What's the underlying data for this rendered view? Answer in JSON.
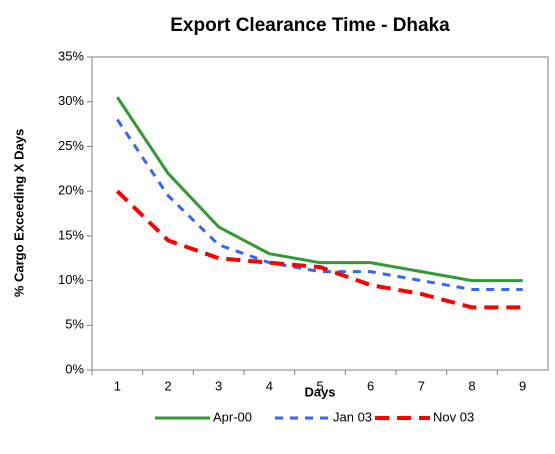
{
  "chart_data": {
    "type": "line",
    "title": "Export Clearance Time - Dhaka",
    "x_label": "Days",
    "y_label": "% Cargo Exceeding X Days",
    "categories": [
      "1",
      "2",
      "3",
      "4",
      "5",
      "6",
      "7",
      "8",
      "9"
    ],
    "series": [
      {
        "name": "Apr-00",
        "color": "#339933",
        "dash": "solid",
        "values": [
          30.5,
          22,
          16,
          13,
          12,
          12,
          11,
          10,
          10
        ]
      },
      {
        "name": "Jan 03",
        "color": "#3366ff",
        "dash": "dashed",
        "values": [
          28,
          19.5,
          14,
          12,
          11,
          11,
          10,
          9,
          9
        ]
      },
      {
        "name": "Nov 03",
        "color": "#ff0000",
        "dash": "dashed",
        "values": [
          20,
          14.5,
          12.5,
          12,
          11.5,
          9.5,
          8.5,
          7,
          7
        ]
      }
    ],
    "ylim": [
      0,
      35
    ],
    "yticks": [
      {
        "value": 0,
        "label": "0%"
      },
      {
        "value": 5,
        "label": "5%"
      },
      {
        "value": 10,
        "label": "10%"
      },
      {
        "value": 15,
        "label": "15%"
      },
      {
        "value": 20,
        "label": "20%"
      },
      {
        "value": 25,
        "label": "25%"
      },
      {
        "value": 30,
        "label": "30%"
      },
      {
        "value": 35,
        "label": "35%"
      }
    ],
    "grid": false,
    "legend": "bottom"
  }
}
